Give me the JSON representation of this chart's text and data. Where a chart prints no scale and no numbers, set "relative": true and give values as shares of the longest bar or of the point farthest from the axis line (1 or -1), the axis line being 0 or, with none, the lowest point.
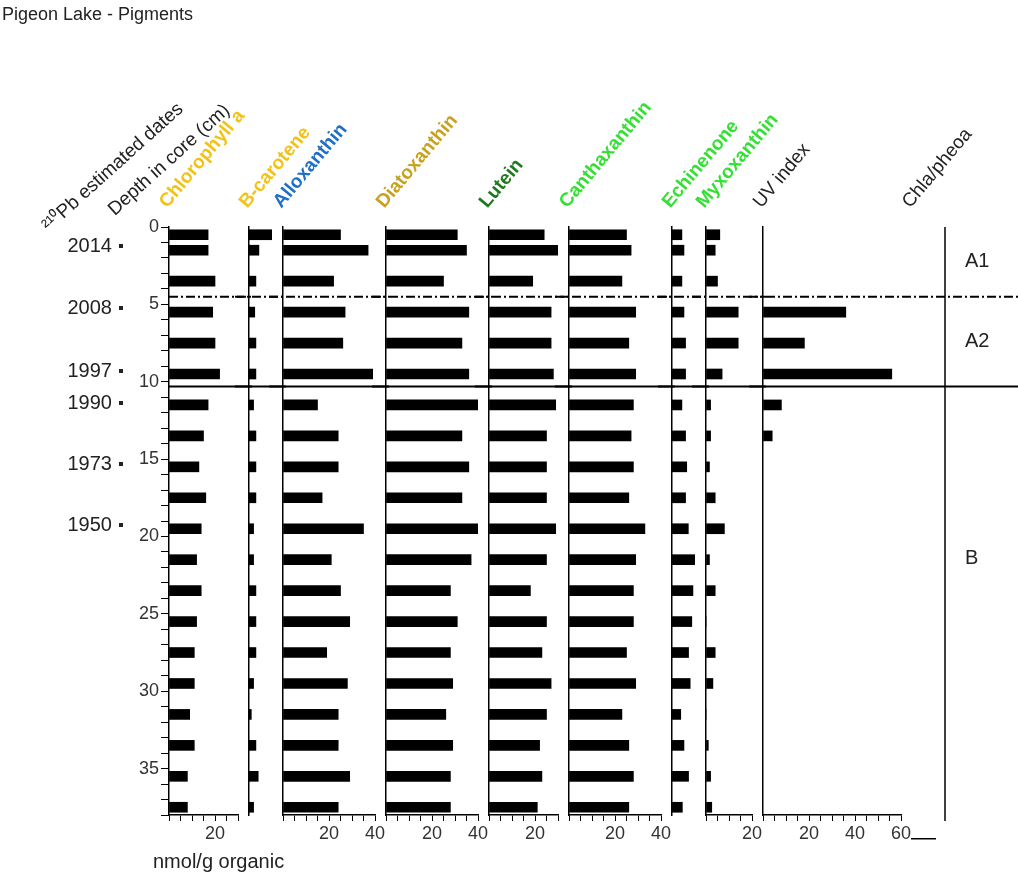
{
  "chart_data": [
    {
      "type": "bar",
      "orientation": "horizontal",
      "title": "Chlorophyll a",
      "annotations": [
        "Pigeon Lake - Pigments",
        "2014",
        "2008",
        "1997",
        "1990",
        "1973",
        "1950"
      ],
      "xlabel": "nmol/g organic",
      "ylabel": "Depth in core (cm)",
      "y2label": "²¹⁰Pb estimated dates",
      "color": "#000000",
      "x": [
        0.5,
        1.5,
        3.5,
        5.5,
        7.5,
        9.5,
        11.5,
        13.5,
        15.5,
        17.5,
        19.5,
        21.5,
        23.5,
        25.5,
        27.5,
        29.5,
        31.5,
        33.5,
        35.5,
        37.5
      ],
      "values": [
        17,
        17,
        20,
        19,
        20,
        22,
        17,
        15,
        13,
        16,
        14,
        12,
        14,
        12,
        11,
        11,
        9,
        11,
        8,
        8
      ],
      "xlim": [
        0,
        30
      ],
      "xticks": [
        {
          "value": 0,
          "label": null
        },
        {
          "value": 5,
          "label": null
        },
        {
          "value": 10,
          "label": null
        },
        {
          "value": 15,
          "label": null
        },
        20,
        {
          "value": 25,
          "label": null
        },
        {
          "value": 30,
          "label": null
        }
      ],
      "ylim": [
        38,
        0
      ],
      "yticks": [
        0,
        {
          "value": 1,
          "label": null
        },
        {
          "value": 2,
          "label": null
        },
        {
          "value": 3,
          "label": null
        },
        {
          "value": 4,
          "label": null
        },
        5,
        {
          "value": 6,
          "label": null
        },
        {
          "value": 7,
          "label": null
        },
        {
          "value": 8,
          "label": null
        },
        {
          "value": 9,
          "label": null
        },
        10,
        {
          "value": 11,
          "label": null
        },
        {
          "value": 12,
          "label": null
        },
        {
          "value": 13,
          "label": null
        },
        {
          "value": 14,
          "label": null
        },
        15,
        {
          "value": 16,
          "label": null
        },
        {
          "value": 17,
          "label": null
        },
        {
          "value": 18,
          "label": null
        },
        {
          "value": 19,
          "label": null
        },
        20,
        {
          "value": 21,
          "label": null
        },
        {
          "value": 22,
          "label": null
        },
        {
          "value": 23,
          "label": null
        },
        {
          "value": 24,
          "label": null
        },
        25,
        {
          "value": 26,
          "label": null
        },
        {
          "value": 27,
          "label": null
        },
        {
          "value": 28,
          "label": null
        },
        {
          "value": 29,
          "label": null
        },
        30,
        {
          "value": 31,
          "label": null
        },
        {
          "value": 32,
          "label": null
        },
        {
          "value": 33,
          "label": null
        },
        {
          "value": 34,
          "label": null
        },
        35,
        {
          "value": 36,
          "label": null
        },
        {
          "value": 37,
          "label": null
        },
        {
          "value": 38,
          "label": null
        }
      ],
      "ref_lines": [
        {
          "axis": "y",
          "value": 4.5,
          "line_style": "dashed"
        },
        {
          "axis": "y",
          "value": 10.3,
          "line_style": "solid"
        }
      ]
    },
    {
      "type": "bar",
      "orientation": "horizontal",
      "title": "B-carotene",
      "color": "#000000",
      "relative": true,
      "tick_labels": false,
      "x": [
        0.5,
        1.5,
        3.5,
        5.5,
        7.5,
        9.5,
        11.5,
        13.5,
        15.5,
        17.5,
        19.5,
        21.5,
        23.5,
        25.5,
        27.5,
        29.5,
        31.5,
        33.5,
        35.5,
        37.5
      ],
      "values": [
        1,
        0.43,
        0.3,
        0.25,
        0.3,
        0.3,
        0.2,
        0.3,
        0.3,
        0.3,
        0.2,
        0.2,
        0.3,
        0.3,
        0.3,
        0.2,
        0.1,
        0.3,
        0.4,
        0.2
      ],
      "ylim": [
        38,
        0
      ],
      "ref_lines": [
        {
          "axis": "y",
          "value": 4.5,
          "line_style": "dashed"
        },
        {
          "axis": "y",
          "value": 10.3,
          "line_style": "solid"
        }
      ]
    },
    {
      "type": "bar",
      "orientation": "horizontal",
      "title": "Alloxanthin",
      "color": "#000000",
      "tick_labels": "x",
      "x": [
        0.5,
        1.5,
        3.5,
        5.5,
        7.5,
        9.5,
        11.5,
        13.5,
        15.5,
        17.5,
        19.5,
        21.5,
        23.5,
        25.5,
        27.5,
        29.5,
        31.5,
        33.5,
        35.5,
        37.5
      ],
      "values": [
        25,
        37,
        22,
        27,
        26,
        39,
        15,
        24,
        24,
        17,
        35,
        21,
        25,
        29,
        19,
        28,
        24,
        24,
        29,
        24
      ],
      "xlim": [
        0,
        40
      ],
      "xticks": [
        {
          "value": 0,
          "label": null
        },
        {
          "value": 5,
          "label": null
        },
        {
          "value": 10,
          "label": null
        },
        {
          "value": 15,
          "label": null
        },
        20,
        {
          "value": 25,
          "label": null
        },
        {
          "value": 30,
          "label": null
        },
        {
          "value": 35,
          "label": null
        },
        40
      ],
      "ylim": [
        38,
        0
      ],
      "ref_lines": [
        {
          "axis": "y",
          "value": 4.5,
          "line_style": "dashed"
        },
        {
          "axis": "y",
          "value": 10.3,
          "line_style": "solid"
        }
      ]
    },
    {
      "type": "bar",
      "orientation": "horizontal",
      "title": "Diatoxanthin",
      "color": "#000000",
      "tick_labels": "x",
      "x": [
        0.5,
        1.5,
        3.5,
        5.5,
        7.5,
        9.5,
        11.5,
        13.5,
        15.5,
        17.5,
        19.5,
        21.5,
        23.5,
        25.5,
        27.5,
        29.5,
        31.5,
        33.5,
        35.5,
        37.5
      ],
      "values": [
        31,
        35,
        25,
        36,
        33,
        36,
        40,
        33,
        36,
        33,
        40,
        37,
        28,
        31,
        28,
        29,
        26,
        29,
        28,
        28
      ],
      "xlim": [
        0,
        40
      ],
      "xticks": [
        {
          "value": 0,
          "label": null
        },
        {
          "value": 5,
          "label": null
        },
        {
          "value": 10,
          "label": null
        },
        {
          "value": 15,
          "label": null
        },
        20,
        {
          "value": 25,
          "label": null
        },
        {
          "value": 30,
          "label": null
        },
        {
          "value": 35,
          "label": null
        },
        40
      ],
      "ylim": [
        38,
        0
      ],
      "ref_lines": [
        {
          "axis": "y",
          "value": 4.5,
          "line_style": "dashed"
        },
        {
          "axis": "y",
          "value": 10.3,
          "line_style": "solid"
        }
      ]
    },
    {
      "type": "bar",
      "orientation": "horizontal",
      "title": "Lutein",
      "color": "#000000",
      "tick_labels": "x",
      "x": [
        0.5,
        1.5,
        3.5,
        5.5,
        7.5,
        9.5,
        11.5,
        13.5,
        15.5,
        17.5,
        19.5,
        21.5,
        23.5,
        25.5,
        27.5,
        29.5,
        31.5,
        33.5,
        35.5,
        37.5
      ],
      "values": [
        24,
        30,
        19,
        27,
        27,
        28,
        29,
        25,
        25,
        25,
        29,
        25,
        18,
        25,
        23,
        27,
        25,
        22,
        23,
        21
      ],
      "xlim": [
        0,
        30
      ],
      "xticks": [
        {
          "value": 0,
          "label": null
        },
        {
          "value": 5,
          "label": null
        },
        {
          "value": 10,
          "label": null
        },
        {
          "value": 15,
          "label": null
        },
        20,
        {
          "value": 25,
          "label": null
        },
        {
          "value": 30,
          "label": null
        }
      ],
      "ylim": [
        38,
        0
      ],
      "ref_lines": [
        {
          "axis": "y",
          "value": 4.5,
          "line_style": "dashed"
        },
        {
          "axis": "y",
          "value": 10.3,
          "line_style": "solid"
        }
      ]
    },
    {
      "type": "bar",
      "orientation": "horizontal",
      "title": "Canthaxanthin",
      "color": "#000000",
      "tick_labels": "x",
      "x": [
        0.5,
        1.5,
        3.5,
        5.5,
        7.5,
        9.5,
        11.5,
        13.5,
        15.5,
        17.5,
        19.5,
        21.5,
        23.5,
        25.5,
        27.5,
        29.5,
        31.5,
        33.5,
        35.5,
        37.5
      ],
      "values": [
        25,
        27,
        23,
        29,
        26,
        29,
        28,
        27,
        28,
        26,
        33,
        29,
        28,
        28,
        25,
        29,
        23,
        26,
        28,
        26
      ],
      "xlim": [
        0,
        40
      ],
      "xticks": [
        {
          "value": 0,
          "label": null
        },
        {
          "value": 5,
          "label": null
        },
        {
          "value": 10,
          "label": null
        },
        {
          "value": 15,
          "label": null
        },
        20,
        {
          "value": 25,
          "label": null
        },
        {
          "value": 30,
          "label": null
        },
        {
          "value": 35,
          "label": null
        },
        40
      ],
      "ylim": [
        38,
        0
      ],
      "ref_lines": [
        {
          "axis": "y",
          "value": 4.5,
          "line_style": "dashed"
        },
        {
          "axis": "y",
          "value": 10.3,
          "line_style": "solid"
        }
      ]
    },
    {
      "type": "bar",
      "orientation": "horizontal",
      "title": "Echinenone",
      "color": "#000000",
      "relative": true,
      "tick_labels": false,
      "x": [
        0.5,
        1.5,
        3.5,
        5.5,
        7.5,
        9.5,
        11.5,
        13.5,
        15.5,
        17.5,
        19.5,
        21.5,
        23.5,
        25.5,
        27.5,
        29.5,
        31.5,
        33.5,
        35.5,
        37.5
      ],
      "values": [
        0.43,
        0.52,
        0.43,
        0.52,
        0.59,
        0.59,
        0.43,
        0.59,
        0.64,
        0.59,
        0.71,
        1,
        0.91,
        0.86,
        0.72,
        0.79,
        0.38,
        0.52,
        0.72,
        0.45
      ],
      "ylim": [
        38,
        0
      ],
      "ref_lines": [
        {
          "axis": "y",
          "value": 4.5,
          "line_style": "dashed"
        },
        {
          "axis": "y",
          "value": 10.3,
          "line_style": "solid"
        }
      ]
    },
    {
      "type": "bar",
      "orientation": "horizontal",
      "title": "Myxoxanthin",
      "color": "#000000",
      "tick_labels": "x",
      "x": [
        0.5,
        1.5,
        3.5,
        5.5,
        7.5,
        9.5,
        11.5,
        13.5,
        15.5,
        17.5,
        19.5,
        21.5,
        23.5,
        25.5,
        27.5,
        29.5,
        31.5,
        33.5,
        35.5,
        37.5
      ],
      "values": [
        6,
        4,
        5,
        14,
        14,
        7,
        2,
        2,
        1.5,
        4,
        8,
        1.5,
        4,
        0,
        4,
        3,
        0,
        1,
        2,
        2.5
      ],
      "xlim": [
        0,
        20
      ],
      "xticks": [
        {
          "value": 0,
          "label": null
        },
        {
          "value": 5,
          "label": null
        },
        {
          "value": 10,
          "label": null
        },
        {
          "value": 15,
          "label": null
        },
        20
      ],
      "ylim": [
        38,
        0
      ],
      "ref_lines": [
        {
          "axis": "y",
          "value": 4.5,
          "line_style": "dashed"
        },
        {
          "axis": "y",
          "value": 10.3,
          "line_style": "solid"
        }
      ]
    },
    {
      "type": "bar",
      "orientation": "horizontal",
      "title": "UV index",
      "color": "#000000",
      "tick_labels": "x",
      "x": [
        5.5,
        7.5,
        9.5,
        11.5,
        13.5
      ],
      "values": [
        36,
        18,
        56,
        8,
        4
      ],
      "xlim": [
        0,
        60
      ],
      "xticks": [
        {
          "value": 0,
          "label": null
        },
        {
          "value": 5,
          "label": null
        },
        {
          "value": 10,
          "label": null
        },
        {
          "value": 15,
          "label": null
        },
        20,
        {
          "value": 25,
          "label": null
        },
        {
          "value": 30,
          "label": null
        },
        {
          "value": 35,
          "label": null
        },
        40,
        {
          "value": 45,
          "label": null
        },
        {
          "value": 50,
          "label": null
        },
        {
          "value": 55,
          "label": null
        },
        60
      ],
      "ylim": [
        38,
        0
      ],
      "ref_lines": [
        {
          "axis": "y",
          "value": 4.5,
          "line_style": "dashed"
        },
        {
          "axis": "y",
          "value": 10.3,
          "line_style": "solid"
        }
      ],
      "annotations": [
        "A1",
        "A2",
        "B"
      ]
    },
    {
      "type": "other",
      "title": "Chla/pheoa"
    }
  ]
}
